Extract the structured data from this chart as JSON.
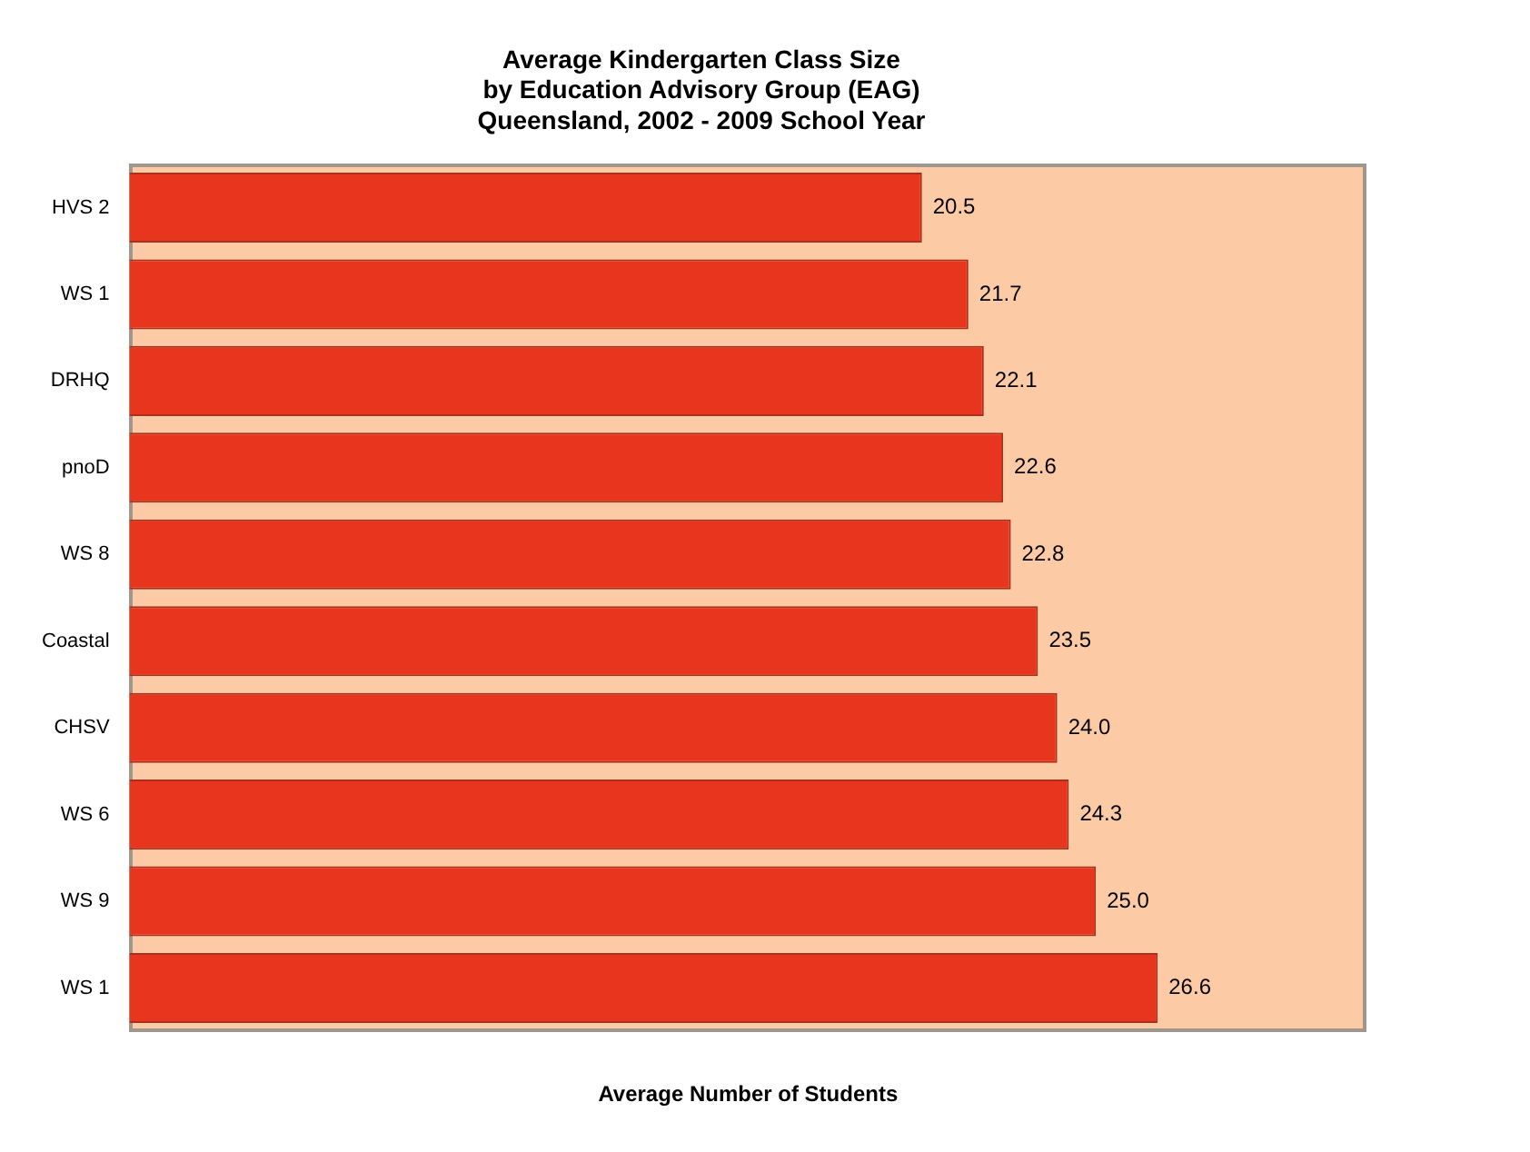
{
  "chart_data": {
    "type": "bar",
    "orientation": "horizontal",
    "title": [
      "Average Kindergarten Class Size",
      "by Education Advisory Group (EAG)",
      "Queensland, 2002 - 2009 School Year"
    ],
    "xlabel": "Average Number of Students",
    "categories": [
      "HVS 2",
      "WS 1",
      "DRHQ",
      "pnoD",
      "WS 8",
      "Coastal",
      "CHSV",
      "WS 6",
      "WS 9",
      "WS 1"
    ],
    "values": [
      20.5,
      21.7,
      22.1,
      22.6,
      22.8,
      23.5,
      24.0,
      24.3,
      25.0,
      26.6
    ],
    "color": "#e8361e",
    "xlim": [
      0,
      32
    ],
    "tick_labels": "y",
    "grid": false,
    "value_labels": [
      "20.5",
      "21.7",
      "22.1",
      "22.6",
      "22.8",
      "23.5",
      "24.0",
      "24.3",
      "25.0",
      "26.6"
    ],
    "legend": false
  }
}
